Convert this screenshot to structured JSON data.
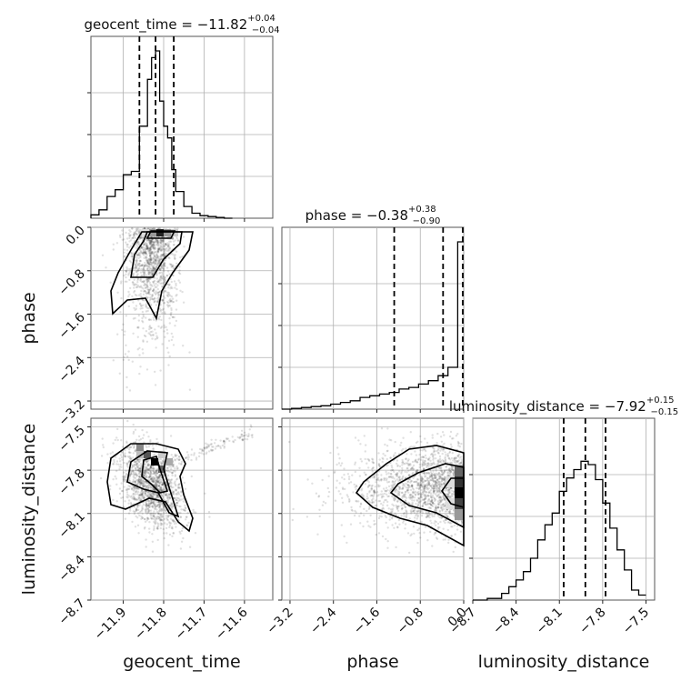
{
  "chart_data": {
    "type": "corner",
    "parameters": [
      {
        "name": "geocent_time",
        "title": {
          "prefix": "geocent_time = ",
          "value": "−11.82",
          "plus": "+0.04",
          "minus": "−0.04"
        },
        "range": [
          -11.98,
          -11.53
        ],
        "ticks": [
          -11.9,
          -11.8,
          -11.7,
          -11.6
        ],
        "tick_labels": [
          "−11.9",
          "−11.8",
          "−11.7",
          "−11.6"
        ],
        "quantiles": [
          -11.86,
          -11.82,
          -11.775
        ],
        "histogram": {
          "edges": [
            -11.98,
            -11.96,
            -11.94,
            -11.92,
            -11.9,
            -11.88,
            -11.86,
            -11.84,
            -11.83,
            -11.82,
            -11.81,
            -11.8,
            -11.79,
            -11.78,
            -11.77,
            -11.75,
            -11.73,
            -11.71,
            -11.69,
            -11.67,
            -11.65,
            -11.63
          ],
          "counts": [
            0.02,
            0.05,
            0.13,
            0.17,
            0.26,
            0.28,
            0.55,
            0.83,
            0.96,
            1.0,
            0.7,
            0.55,
            0.48,
            0.29,
            0.16,
            0.07,
            0.03,
            0.015,
            0.01,
            0.005,
            0.0
          ]
        }
      },
      {
        "name": "phase",
        "title": {
          "prefix": "phase = ",
          "value": "−0.38",
          "plus": "+0.38",
          "minus": "−0.90"
        },
        "range": [
          -3.35,
          0.0
        ],
        "ticks": [
          -3.2,
          -2.4,
          -1.6,
          -0.8,
          0.0
        ],
        "tick_labels": [
          "−3.2",
          "−2.4",
          "−1.6",
          "−0.8",
          "0.0"
        ],
        "quantiles": [
          -1.28,
          -0.38,
          0.0
        ],
        "histogram": {
          "edges": [
            -3.35,
            -3.17,
            -2.99,
            -2.81,
            -2.63,
            -2.45,
            -2.27,
            -2.09,
            -1.91,
            -1.73,
            -1.55,
            -1.37,
            -1.19,
            -1.01,
            -0.83,
            -0.65,
            -0.47,
            -0.29,
            -0.11,
            0.0
          ],
          "counts": [
            0.0,
            0.005,
            0.01,
            0.015,
            0.02,
            0.03,
            0.04,
            0.05,
            0.07,
            0.08,
            0.09,
            0.1,
            0.12,
            0.13,
            0.15,
            0.17,
            0.2,
            0.25,
            1.0
          ]
        }
      },
      {
        "name": "luminosity_distance",
        "title": {
          "prefix": "luminosity_distance = ",
          "value": "−7.92",
          "plus": "+0.15",
          "minus": "−0.15"
        },
        "range": [
          -8.7,
          -7.44
        ],
        "ticks": [
          -8.7,
          -8.4,
          -8.1,
          -7.8,
          -7.5
        ],
        "tick_labels": [
          "−8.7",
          "−8.4",
          "−8.1",
          "−7.8",
          "−7.5"
        ],
        "quantiles": [
          -8.07,
          -7.92,
          -7.78
        ],
        "histogram": {
          "edges": [
            -8.7,
            -8.6,
            -8.5,
            -8.45,
            -8.4,
            -8.35,
            -8.3,
            -8.25,
            -8.2,
            -8.15,
            -8.1,
            -8.05,
            -8.0,
            -7.95,
            -7.9,
            -7.85,
            -7.8,
            -7.75,
            -7.7,
            -7.65,
            -7.6,
            -7.55,
            -7.5
          ],
          "counts": [
            0.0,
            0.01,
            0.04,
            0.08,
            0.12,
            0.17,
            0.25,
            0.36,
            0.45,
            0.52,
            0.65,
            0.73,
            0.78,
            0.83,
            0.81,
            0.72,
            0.58,
            0.43,
            0.3,
            0.18,
            0.06,
            0.03
          ]
        }
      }
    ],
    "grid": true,
    "quantile_line_style": "dashed",
    "density_color": "#000000",
    "contour_color": "#000000"
  }
}
